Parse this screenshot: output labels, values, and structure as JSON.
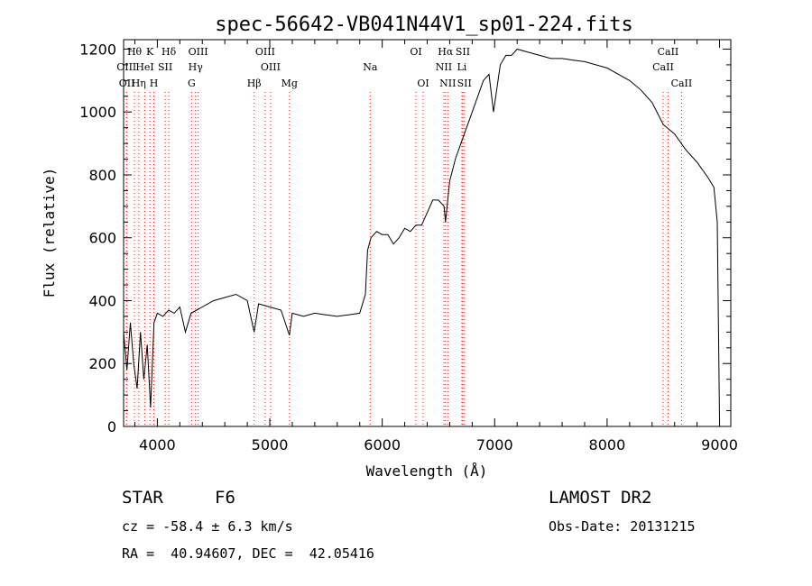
{
  "chart_data": {
    "type": "line",
    "title": "spec-56642-VB041N44V1_sp01-224.fits",
    "xlabel": "Wavelength (Å)",
    "ylabel": "Flux (relative)",
    "xlim": [
      3700,
      9100
    ],
    "ylim": [
      0,
      1230
    ],
    "xticks": [
      4000,
      5000,
      6000,
      7000,
      8000,
      9000
    ],
    "yticks": [
      0,
      200,
      400,
      600,
      800,
      1000,
      1200
    ],
    "grid": false,
    "series": [
      {
        "x": [
          3700,
          3730,
          3760,
          3790,
          3820,
          3850,
          3880,
          3910,
          3940,
          3970,
          4000,
          4050,
          4100,
          4150,
          4200,
          4250,
          4300,
          4350,
          4400,
          4500,
          4600,
          4700,
          4800,
          4861,
          4900,
          5000,
          5100,
          5175,
          5200,
          5300,
          5400,
          5500,
          5600,
          5700,
          5800,
          5850,
          5870,
          5900,
          5950,
          6000,
          6050,
          6100,
          6150,
          6200,
          6250,
          6300,
          6350,
          6400,
          6450,
          6500,
          6550,
          6563,
          6600,
          6650,
          6700,
          6750,
          6800,
          6850,
          6900,
          6950,
          6990,
          7050,
          7100,
          7150,
          7200,
          7300,
          7400,
          7500,
          7600,
          7700,
          7800,
          7900,
          8000,
          8100,
          8200,
          8300,
          8400,
          8500,
          8600,
          8700,
          8800,
          8900,
          8950,
          8980,
          9000
        ],
        "y": [
          300,
          180,
          330,
          200,
          120,
          300,
          150,
          260,
          60,
          330,
          360,
          350,
          370,
          360,
          380,
          300,
          360,
          370,
          380,
          400,
          410,
          420,
          400,
          300,
          390,
          380,
          370,
          290,
          360,
          350,
          360,
          355,
          350,
          355,
          360,
          420,
          560,
          600,
          620,
          610,
          610,
          580,
          600,
          630,
          620,
          640,
          640,
          680,
          720,
          720,
          700,
          650,
          780,
          850,
          900,
          950,
          1000,
          1050,
          1100,
          1120,
          1000,
          1150,
          1180,
          1180,
          1200,
          1190,
          1180,
          1170,
          1170,
          1165,
          1160,
          1150,
          1140,
          1120,
          1100,
          1070,
          1030,
          960,
          930,
          880,
          840,
          790,
          760,
          650,
          20
        ]
      }
    ],
    "line_markers": [
      {
        "label": "Hθ",
        "x": 3797,
        "row": 0
      },
      {
        "label": "K",
        "x": 3934,
        "row": 0
      },
      {
        "label": "Hδ",
        "x": 4102,
        "row": 0
      },
      {
        "label": "OIII",
        "x": 4363,
        "row": 0
      },
      {
        "label": "OIII",
        "x": 4959,
        "row": 0
      },
      {
        "label": "OI",
        "x": 6300,
        "row": 0
      },
      {
        "label": "Hα",
        "x": 6563,
        "row": 0
      },
      {
        "label": "SII",
        "x": 6717,
        "row": 0
      },
      {
        "label": "CaII",
        "x": 8542,
        "row": 0
      },
      {
        "label": "OIII",
        "x": 3726,
        "row": 1
      },
      {
        "label": "HeI",
        "x": 3889,
        "row": 1
      },
      {
        "label": "SII",
        "x": 4070,
        "row": 1
      },
      {
        "label": "Hγ",
        "x": 4340,
        "row": 1
      },
      {
        "label": "OIII",
        "x": 5007,
        "row": 1
      },
      {
        "label": "Na",
        "x": 5893,
        "row": 1
      },
      {
        "label": "NII",
        "x": 6548,
        "row": 1
      },
      {
        "label": "Li",
        "x": 6708,
        "row": 1
      },
      {
        "label": "CaII",
        "x": 8498,
        "row": 1
      },
      {
        "label": "OII",
        "x": 3729,
        "row": 2
      },
      {
        "label": "Hη",
        "x": 3835,
        "row": 2
      },
      {
        "label": "H",
        "x": 3969,
        "row": 2
      },
      {
        "label": "G",
        "x": 4305,
        "row": 2
      },
      {
        "label": "Hβ",
        "x": 4861,
        "row": 2
      },
      {
        "label": "Mg",
        "x": 5175,
        "row": 2
      },
      {
        "label": "OI",
        "x": 6364,
        "row": 2
      },
      {
        "label": "NII",
        "x": 6583,
        "row": 2
      },
      {
        "label": "SII",
        "x": 6731,
        "row": 2
      },
      {
        "label": "CaII",
        "x": 8662,
        "row": 2
      }
    ]
  },
  "info": {
    "object_type": "STAR",
    "subclass": "F6",
    "survey": "LAMOST DR2",
    "cz": "cz = -58.4 ± 6.3 km/s",
    "obs_date": "Obs-Date: 20131215",
    "coords": "RA =  40.94607, DEC =  42.05416"
  },
  "colors": {
    "line_marker": "#e02020",
    "spectrum": "#000000"
  }
}
